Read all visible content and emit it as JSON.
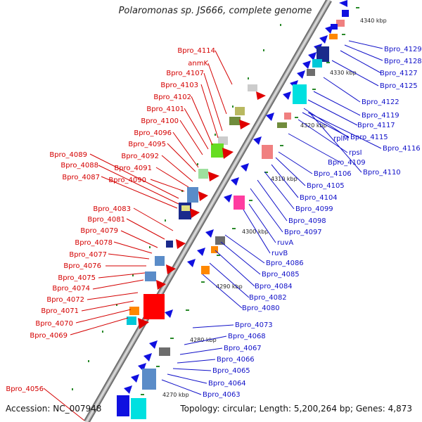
{
  "title": "Polaromonas sp. JS666, complete genome",
  "footer": {
    "accession": "Accession: NC_007948",
    "topology": "Topology: circular; Length: 5,200,264 bp; Genes: 4,873"
  },
  "colors": {
    "axis": "#8e8e8e",
    "left_label": "#d40000",
    "right_label": "#1010c8",
    "left_gene": "#e00000",
    "right_gene": "#1010e0",
    "tick_dot": "#2a8a2a"
  },
  "ticks": [
    "4340 kbp",
    "4330 kbp",
    "4320 kbp",
    "4310 kbp",
    "4300 kbp",
    "4290 kbp",
    "4280 kbp",
    "4270 kbp"
  ],
  "left_labels": [
    "Bpro_4114",
    "anmK",
    "Bpro_4107",
    "Bpro_4103",
    "Bpro_4102",
    "Bpro_4101",
    "Bpro_4100",
    "Bpro_4096",
    "Bpro_4095",
    "Bpro_4092",
    "Bpro_4091",
    "Bpro_4090",
    "Bpro_4089",
    "Bpro_4088",
    "Bpro_4087",
    "Bpro_4083",
    "Bpro_4081",
    "Bpro_4079",
    "Bpro_4078",
    "Bpro_4077",
    "Bpro_4076",
    "Bpro_4075",
    "Bpro_4074",
    "Bpro_4072",
    "Bpro_4071",
    "Bpro_4070",
    "Bpro_4069",
    "Bpro_4056"
  ],
  "right_labels": [
    "Bpro_4129",
    "Bpro_4128",
    "Bpro_4127",
    "Bpro_4125",
    "Bpro_4122",
    "Bpro_4119",
    "Bpro_4117",
    "rplM",
    "Bpro_4115",
    "Bpro_4116",
    "rpsI",
    "Bpro_4109",
    "Bpro_4110",
    "Bpro_4106",
    "Bpro_4105",
    "Bpro_4104",
    "Bpro_4099",
    "Bpro_4098",
    "Bpro_4097",
    "ruvA",
    "ruvB",
    "Bpro_4086",
    "Bpro_4085",
    "Bpro_4084",
    "Bpro_4082",
    "Bpro_4080",
    "Bpro_4073",
    "Bpro_4068",
    "Bpro_4067",
    "Bpro_4066",
    "Bpro_4065",
    "Bpro_4064",
    "Bpro_4063"
  ]
}
